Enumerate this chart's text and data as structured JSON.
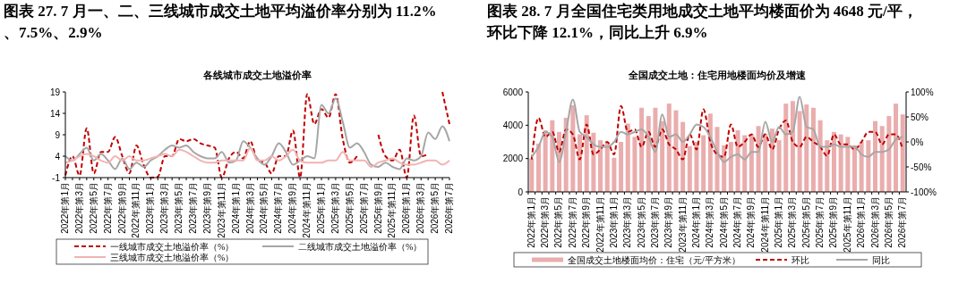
{
  "chart_data": [
    {
      "type": "line",
      "title": "图表 27. 7 月一、二、三线城市成交土地平均溢价率分别为 11.2%、7.5%、2.9%",
      "subtitle": "各线城市成交土地溢价率",
      "categories": [
        "2022年第1月",
        null,
        "2022年第3月",
        null,
        "2022年第5月",
        null,
        "2022年第7月",
        null,
        "2022年第9月",
        null,
        "2022年第11月",
        null,
        "2023年第1月",
        null,
        "2023年第3月",
        null,
        "2023年第5月",
        null,
        "2023年第7月",
        null,
        "2023年第9月",
        null,
        "2023年第11月",
        null,
        "2024年第1月",
        null,
        "2024年第3月",
        null,
        "2024年第5月",
        null,
        "2024年第7月",
        null,
        "2024年第9月",
        null,
        "2024年第11月",
        null,
        "2025年第1月",
        null,
        "2025年第3月",
        null,
        "2025年第5月",
        null,
        "2025年第7月",
        null,
        "2025年第9月",
        null,
        "2025年第11月",
        null,
        "2026年第1月",
        null,
        "2026年第3月",
        null,
        "2026年第5月",
        null,
        "2026年第7月"
      ],
      "ylim": [
        -1,
        19
      ],
      "yticks": [
        -1,
        4,
        9,
        14,
        19
      ],
      "legend": "bottom",
      "series": [
        {
          "name": "一线城市成交土地溢价率（%）",
          "color": "#c00000",
          "line_style": "dashed",
          "values": [
            -0.5,
            4,
            -0.5,
            10.5,
            0,
            5,
            5,
            8.5,
            4,
            0,
            6.5,
            2,
            -1,
            -0.8,
            4,
            4,
            8,
            7.5,
            8,
            7,
            6.5,
            6,
            -1,
            3.5,
            5,
            3.5,
            7.5,
            3,
            2.5,
            0,
            4,
            4,
            10,
            -1,
            18.5,
            11.5,
            15,
            13,
            18.5,
            8,
            2.5,
            4,
            null,
            null,
            9,
            4,
            3,
            5.5,
            -1,
            13.5,
            4,
            4.5,
            null,
            19,
            11.5
          ]
        },
        {
          "name": "二线城市成交土地溢价率（%）",
          "color": "#a6a6a6",
          "line_style": "solid",
          "values": [
            4,
            3,
            4.5,
            6,
            3,
            4.5,
            3,
            1,
            3.5,
            1,
            2.5,
            1.5,
            3,
            4,
            5.5,
            6.5,
            6,
            6.5,
            5,
            4,
            3.5,
            3.5,
            5,
            2.5,
            3,
            7.5,
            6,
            3.5,
            2,
            4,
            7,
            5,
            2,
            3,
            4,
            3.5,
            16,
            14,
            17.5,
            12,
            6,
            7,
            5,
            2,
            1.5,
            2.5,
            1.5,
            1,
            3.5,
            3,
            4,
            9.5,
            8,
            11,
            7.5
          ]
        },
        {
          "name": "三线城市成交土地溢价率（%）",
          "color": "#f2b3b3",
          "line_style": "solid",
          "values": [
            2.5,
            3,
            4,
            4.5,
            4,
            3,
            2.5,
            4,
            3,
            4,
            3,
            3,
            3.5,
            4,
            4.5,
            4,
            5.5,
            5,
            4,
            3,
            2.5,
            2.5,
            3,
            3,
            3,
            3,
            6,
            3,
            3,
            4,
            3,
            4,
            5.5,
            3,
            2.5,
            2.5,
            2.5,
            3,
            3,
            5,
            3,
            3,
            3,
            1.5,
            2.5,
            3,
            3.5,
            2.5,
            2,
            2,
            2.5,
            3,
            3,
            2,
            3
          ]
        }
      ]
    },
    {
      "type": "bar",
      "title": "图表 28. 7 月全国住宅类用地成交土地平均楼面价为 4648 元/平，环比下降 12.1%，同比上升 6.9%",
      "subtitle": "全国成交土地：住宅用地楼面均价及增速",
      "categories": [
        "2022年第1月",
        null,
        "2022年第3月",
        null,
        "2022年第5月",
        null,
        "2022年第7月",
        null,
        "2022年第9月",
        null,
        "2022年第11月",
        null,
        "2023年第1月",
        null,
        "2023年第3月",
        null,
        "2023年第5月",
        null,
        "2023年第7月",
        null,
        "2023年第9月",
        null,
        "2023年第11月",
        null,
        "2024年第1月",
        null,
        "2024年第3月",
        null,
        "2024年第5月",
        null,
        "2024年第7月",
        null,
        "2024年第9月",
        null,
        "2024年第11月",
        null,
        "2025年第1月",
        null,
        "2025年第3月",
        null,
        "2025年第5月",
        null,
        "2025年第7月",
        null,
        "2025年第9月",
        null,
        "2025年第11月",
        null,
        "2026年第1月",
        null,
        "2026年第3月",
        null,
        "2026年第5月",
        null,
        "2026年第7月"
      ],
      "ylim": [
        0,
        6000
      ],
      "yticks": [
        0,
        2000,
        4000,
        6000
      ],
      "y2lim": [
        -100,
        100
      ],
      "y2ticks": [
        {
          "value": -100,
          "label": "-100%"
        },
        {
          "value": -50,
          "label": "-50%"
        },
        {
          "value": 0,
          "label": "0%"
        },
        {
          "value": 50,
          "label": "50%"
        },
        {
          "value": 100,
          "label": "100%"
        }
      ],
      "legend": "bottom",
      "series": [
        {
          "name": "全国成交土地楼面均价：住宅（元/平方米）",
          "color": "#eaadad",
          "values": [
            2000,
            2900,
            3700,
            4300,
            3600,
            4450,
            5200,
            3450,
            4600,
            3550,
            3100,
            3000,
            2050,
            3000,
            4100,
            3300,
            5050,
            4550,
            5050,
            4250,
            5300,
            4900,
            4200,
            2750,
            3000,
            3400,
            4700,
            3900,
            2800,
            3000,
            3700,
            3400,
            3450,
            3950,
            3500,
            3800,
            3100,
            5300,
            5450,
            4850,
            5250,
            5050,
            4300,
            3100,
            3600,
            3450,
            3300,
            2800,
            3000,
            3100,
            4250,
            3950,
            4550,
            5300,
            4650
          ]
        },
        {
          "name": "环比",
          "type": "line",
          "axis": "y2",
          "color": "#c00000",
          "line_style": "dashed",
          "values": [
            -35,
            48,
            10,
            20,
            -20,
            25,
            15,
            -35,
            35,
            -25,
            -15,
            0,
            -25,
            72,
            20,
            25,
            -10,
            20,
            -10,
            25,
            -5,
            -15,
            -35,
            15,
            -15,
            65,
            0,
            -25,
            -30,
            35,
            -10,
            0,
            15,
            -10,
            15,
            -15,
            25,
            43,
            0,
            -10,
            10,
            0,
            -10,
            -28,
            15,
            -5,
            -5,
            -15,
            0,
            20,
            20,
            -5,
            15,
            15,
            -15
          ]
        },
        {
          "name": "同比",
          "type": "line",
          "axis": "y2",
          "color": "#a6a6a6",
          "line_style": "solid",
          "values": [
            -30,
            -10,
            20,
            10,
            -40,
            20,
            85,
            20,
            10,
            -5,
            -10,
            -10,
            0,
            20,
            15,
            20,
            25,
            10,
            -20,
            55,
            10,
            15,
            0,
            15,
            35,
            30,
            10,
            -20,
            -40,
            -30,
            -25,
            -35,
            -20,
            -20,
            40,
            0,
            30,
            15,
            20,
            90,
            30,
            25,
            -10,
            -10,
            -5,
            -10,
            -10,
            -10,
            -25,
            -30,
            -20,
            -20,
            -15,
            5,
            10
          ]
        }
      ]
    }
  ]
}
